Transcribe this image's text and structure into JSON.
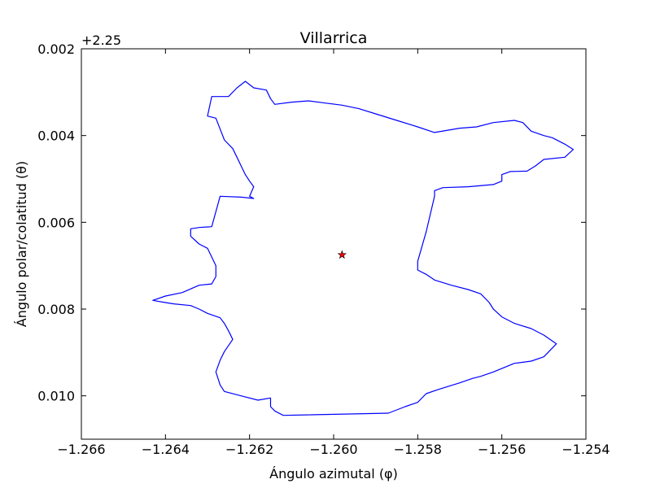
{
  "chart_data": {
    "type": "line",
    "title": "Villarrica",
    "xlabel": "Ángulo azimutal (φ)",
    "ylabel": "Ángulo polar/colatitud (θ)",
    "xlim": [
      -1.266,
      -1.254
    ],
    "ylim": [
      0.011,
      0.002
    ],
    "y_offset_label": "+2.25",
    "y_axis_inverted": true,
    "xticks": [
      -1.266,
      -1.264,
      -1.262,
      -1.26,
      -1.258,
      -1.256,
      -1.254
    ],
    "xtick_labels": [
      "−1.266",
      "−1.264",
      "−1.262",
      "−1.260",
      "−1.258",
      "−1.256",
      "−1.254"
    ],
    "yticks": [
      0.002,
      0.004,
      0.006,
      0.008,
      0.01
    ],
    "ytick_labels": [
      "0.002",
      "0.004",
      "0.006",
      "0.008",
      "0.010"
    ],
    "grid": false,
    "series": [
      {
        "type": "line",
        "color": "#0000ff",
        "points": [
          [
            -1.2612,
            0.01045
          ],
          [
            -1.2587,
            0.0104
          ],
          [
            -1.2583,
            0.01025
          ],
          [
            -1.258,
            0.01015
          ],
          [
            -1.2578,
            0.00995
          ],
          [
            -1.2575,
            0.00985
          ],
          [
            -1.257,
            0.0097
          ],
          [
            -1.2567,
            0.0096
          ],
          [
            -1.2565,
            0.00955
          ],
          [
            -1.2562,
            0.00945
          ],
          [
            -1.2557,
            0.00925
          ],
          [
            -1.2553,
            0.0092
          ],
          [
            -1.255,
            0.0091
          ],
          [
            -1.2547,
            0.0088
          ],
          [
            -1.255,
            0.0086
          ],
          [
            -1.2553,
            0.00845
          ],
          [
            -1.2557,
            0.00833
          ],
          [
            -1.256,
            0.00818
          ],
          [
            -1.2562,
            0.008
          ],
          [
            -1.2563,
            0.00785
          ],
          [
            -1.2565,
            0.00765
          ],
          [
            -1.2568,
            0.00755
          ],
          [
            -1.2572,
            0.00745
          ],
          [
            -1.2576,
            0.00733
          ],
          [
            -1.2578,
            0.0072
          ],
          [
            -1.258,
            0.0071
          ],
          [
            -1.258,
            0.0069
          ],
          [
            -1.2578,
            0.00622
          ],
          [
            -1.2576,
            0.0054
          ],
          [
            -1.2576,
            0.00527
          ],
          [
            -1.2574,
            0.0052
          ],
          [
            -1.2568,
            0.00518
          ],
          [
            -1.2562,
            0.00513
          ],
          [
            -1.256,
            0.00505
          ],
          [
            -1.256,
            0.0049
          ],
          [
            -1.2558,
            0.00483
          ],
          [
            -1.2554,
            0.00482
          ],
          [
            -1.2552,
            0.0047
          ],
          [
            -1.255,
            0.00455
          ],
          [
            -1.2545,
            0.0045
          ],
          [
            -1.2543,
            0.00432
          ],
          [
            -1.2545,
            0.0042
          ],
          [
            -1.2548,
            0.00405
          ],
          [
            -1.255,
            0.004
          ],
          [
            -1.2553,
            0.0039
          ],
          [
            -1.2555,
            0.0037
          ],
          [
            -1.2557,
            0.00365
          ],
          [
            -1.2562,
            0.0037
          ],
          [
            -1.2566,
            0.0038
          ],
          [
            -1.257,
            0.00383
          ],
          [
            -1.2576,
            0.00393
          ],
          [
            -1.258,
            0.0038
          ],
          [
            -1.2585,
            0.00365
          ],
          [
            -1.259,
            0.0035
          ],
          [
            -1.2594,
            0.00338
          ],
          [
            -1.2598,
            0.0033
          ],
          [
            -1.2602,
            0.00325
          ],
          [
            -1.2606,
            0.0032
          ],
          [
            -1.261,
            0.00323
          ],
          [
            -1.2614,
            0.00328
          ],
          [
            -1.2615,
            0.00315
          ],
          [
            -1.2616,
            0.00295
          ],
          [
            -1.2619,
            0.0029
          ],
          [
            -1.2621,
            0.00275
          ],
          [
            -1.2623,
            0.0029
          ],
          [
            -1.2625,
            0.0031
          ],
          [
            -1.2629,
            0.0031
          ],
          [
            -1.263,
            0.00355
          ],
          [
            -1.2628,
            0.0036
          ],
          [
            -1.2627,
            0.00385
          ],
          [
            -1.2626,
            0.0041
          ],
          [
            -1.2624,
            0.0043
          ],
          [
            -1.2623,
            0.0045
          ],
          [
            -1.2622,
            0.0047
          ],
          [
            -1.2621,
            0.0049
          ],
          [
            -1.262,
            0.00505
          ],
          [
            -1.2619,
            0.00518
          ],
          [
            -1.262,
            0.0054
          ],
          [
            -1.2619,
            0.00545
          ],
          [
            -1.2622,
            0.00542
          ],
          [
            -1.2627,
            0.0054
          ],
          [
            -1.2629,
            0.0061
          ],
          [
            -1.2632,
            0.00612
          ],
          [
            -1.2634,
            0.00615
          ],
          [
            -1.2634,
            0.00632
          ],
          [
            -1.2632,
            0.0065
          ],
          [
            -1.263,
            0.0066
          ],
          [
            -1.2629,
            0.0068
          ],
          [
            -1.2628,
            0.007
          ],
          [
            -1.2628,
            0.00725
          ],
          [
            -1.2629,
            0.00742
          ],
          [
            -1.2632,
            0.00745
          ],
          [
            -1.2636,
            0.00762
          ],
          [
            -1.264,
            0.0077
          ],
          [
            -1.2643,
            0.0078
          ],
          [
            -1.264,
            0.00785
          ],
          [
            -1.2638,
            0.00788
          ],
          [
            -1.2634,
            0.00792
          ],
          [
            -1.2632,
            0.008
          ],
          [
            -1.263,
            0.0081
          ],
          [
            -1.2627,
            0.0082
          ],
          [
            -1.2626,
            0.00833
          ],
          [
            -1.2625,
            0.0085
          ],
          [
            -1.2624,
            0.0087
          ],
          [
            -1.2626,
            0.00898
          ],
          [
            -1.2627,
            0.00918
          ],
          [
            -1.2628,
            0.00945
          ],
          [
            -1.2627,
            0.00975
          ],
          [
            -1.2626,
            0.0099
          ],
          [
            -1.2622,
            0.01
          ],
          [
            -1.2618,
            0.0101
          ],
          [
            -1.2615,
            0.01005
          ],
          [
            -1.2615,
            0.01025
          ],
          [
            -1.2614,
            0.01035
          ],
          [
            -1.2612,
            0.01045
          ]
        ]
      },
      {
        "type": "marker",
        "marker": "star",
        "color": "#ff0000",
        "points": [
          [
            -1.2598,
            0.00675
          ]
        ]
      }
    ]
  }
}
